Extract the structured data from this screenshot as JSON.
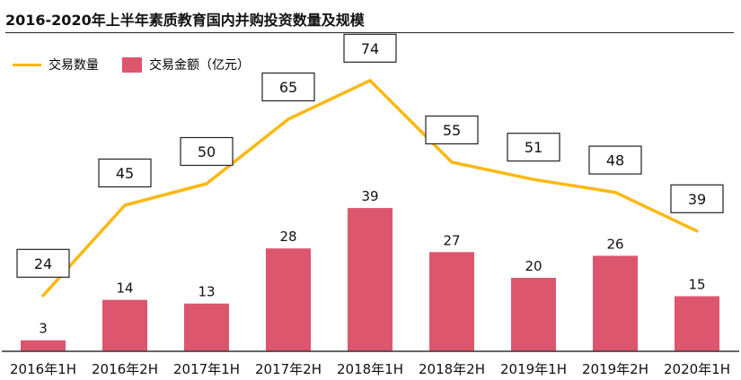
{
  "title": "2016-2020年上半年素质教育国内并购投资数量及规模",
  "colors": {
    "bar": "#DC566E",
    "line": "#FDB813",
    "axis": "#333333"
  },
  "chart_data": {
    "type": "bar",
    "categories": [
      "2016年1H",
      "2016年2H",
      "2017年1H",
      "2017年2H",
      "2018年1H",
      "2018年2H",
      "2019年1H",
      "2019年2H",
      "2020年1H"
    ],
    "series": [
      {
        "name": "交易金额（亿元）",
        "type": "bar",
        "values": [
          3,
          14,
          13,
          28,
          39,
          27,
          20,
          26,
          15
        ]
      },
      {
        "name": "交易数量",
        "type": "line",
        "values": [
          24,
          45,
          50,
          65,
          74,
          55,
          51,
          48,
          39
        ]
      }
    ],
    "legend": [
      "交易数量",
      "交易金额（亿元）"
    ],
    "legend_position": "top-left",
    "data_labels": true,
    "grid": false
  }
}
